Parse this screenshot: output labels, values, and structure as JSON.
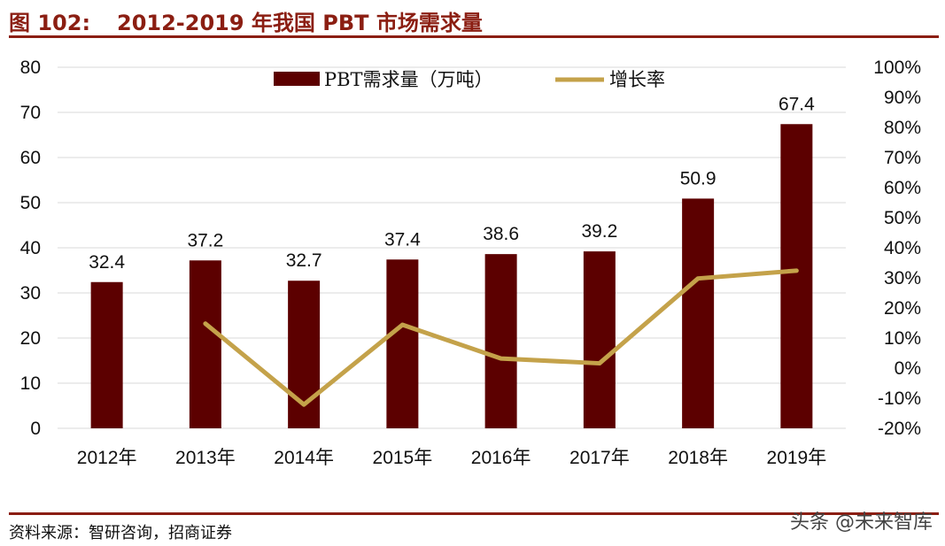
{
  "figure": {
    "label": "图 102:",
    "title": "2012-2019 年我国 PBT 市场需求量"
  },
  "source": "资料来源：智研咨询，招商证券",
  "watermark": "头条 @未来智库",
  "colors": {
    "bar": "#5c0000",
    "line": "#c4a24a",
    "rule": "#8b1e12"
  },
  "chart_data": {
    "type": "bar",
    "categories": [
      "2012年",
      "2013年",
      "2014年",
      "2015年",
      "2016年",
      "2017年",
      "2018年",
      "2019年"
    ],
    "series": [
      {
        "name": "PBT需求量（万吨）",
        "type": "bar",
        "axis": "left",
        "values": [
          32.4,
          37.2,
          32.7,
          37.4,
          38.6,
          39.2,
          50.9,
          67.4
        ]
      },
      {
        "name": "增长率",
        "type": "line",
        "axis": "right",
        "values": [
          null,
          14.8,
          -12.1,
          14.4,
          3.2,
          1.6,
          29.8,
          32.4
        ]
      }
    ],
    "y_left": {
      "min": 0,
      "max": 80,
      "step": 10,
      "ticks": [
        "0",
        "10",
        "20",
        "30",
        "40",
        "50",
        "60",
        "70",
        "80"
      ]
    },
    "y_right": {
      "min": -20,
      "max": 100,
      "step": 10,
      "ticks": [
        "-20%",
        "-10%",
        "0%",
        "10%",
        "20%",
        "30%",
        "40%",
        "50%",
        "60%",
        "70%",
        "80%",
        "90%",
        "100%"
      ]
    },
    "data_labels": [
      "32.4",
      "37.2",
      "32.7",
      "37.4",
      "38.6",
      "39.2",
      "50.9",
      "67.4"
    ],
    "grid": true,
    "legend": "top-center"
  }
}
